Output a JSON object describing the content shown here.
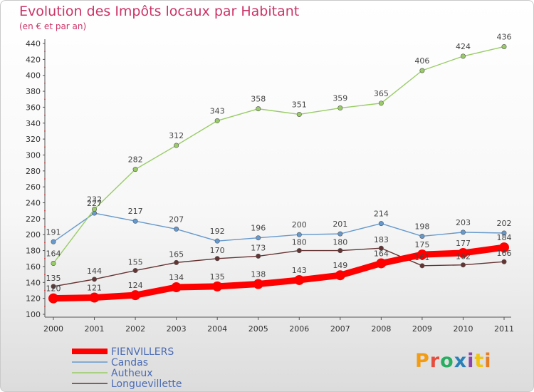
{
  "header": {
    "title": "Evolution des Impôts locaux par Habitant",
    "subtitle": "(en € et par an)"
  },
  "logo": {
    "text": "Proxiti",
    "colors": [
      "#f39c12",
      "#e74c3c",
      "#27ae60",
      "#2980b9",
      "#8e44ad",
      "#f1c40f",
      "#e67e22"
    ]
  },
  "chart_data": {
    "type": "line",
    "title": "Evolution des Impôts locaux par Habitant",
    "subtitle": "(en € et par an)",
    "x": [
      "2000",
      "2001",
      "2002",
      "2003",
      "2004",
      "2005",
      "2006",
      "2007",
      "2008",
      "2009",
      "2010",
      "2011"
    ],
    "ylim": [
      100,
      440
    ],
    "yticks": [
      100,
      120,
      140,
      160,
      180,
      200,
      220,
      240,
      260,
      280,
      300,
      320,
      340,
      360,
      380,
      400,
      420,
      440
    ],
    "grid": false,
    "legend_position": "bottom-left",
    "series": [
      {
        "name": "FIENVILLERS",
        "color": "#ff0000",
        "values": [
          120,
          121,
          124,
          134,
          135,
          138,
          143,
          149,
          164,
          175,
          177,
          184
        ]
      },
      {
        "name": "Candas",
        "color": "#6699cc",
        "values": [
          191,
          227,
          217,
          207,
          192,
          196,
          200,
          201,
          214,
          198,
          203,
          202
        ]
      },
      {
        "name": "Autheux",
        "color": "#99cc66",
        "values": [
          164,
          232,
          282,
          312,
          343,
          358,
          351,
          359,
          365,
          406,
          424,
          436
        ]
      },
      {
        "name": "Longuevillette",
        "color": "#663333",
        "values": [
          135,
          144,
          155,
          165,
          170,
          173,
          180,
          180,
          183,
          161,
          162,
          166
        ]
      }
    ]
  }
}
